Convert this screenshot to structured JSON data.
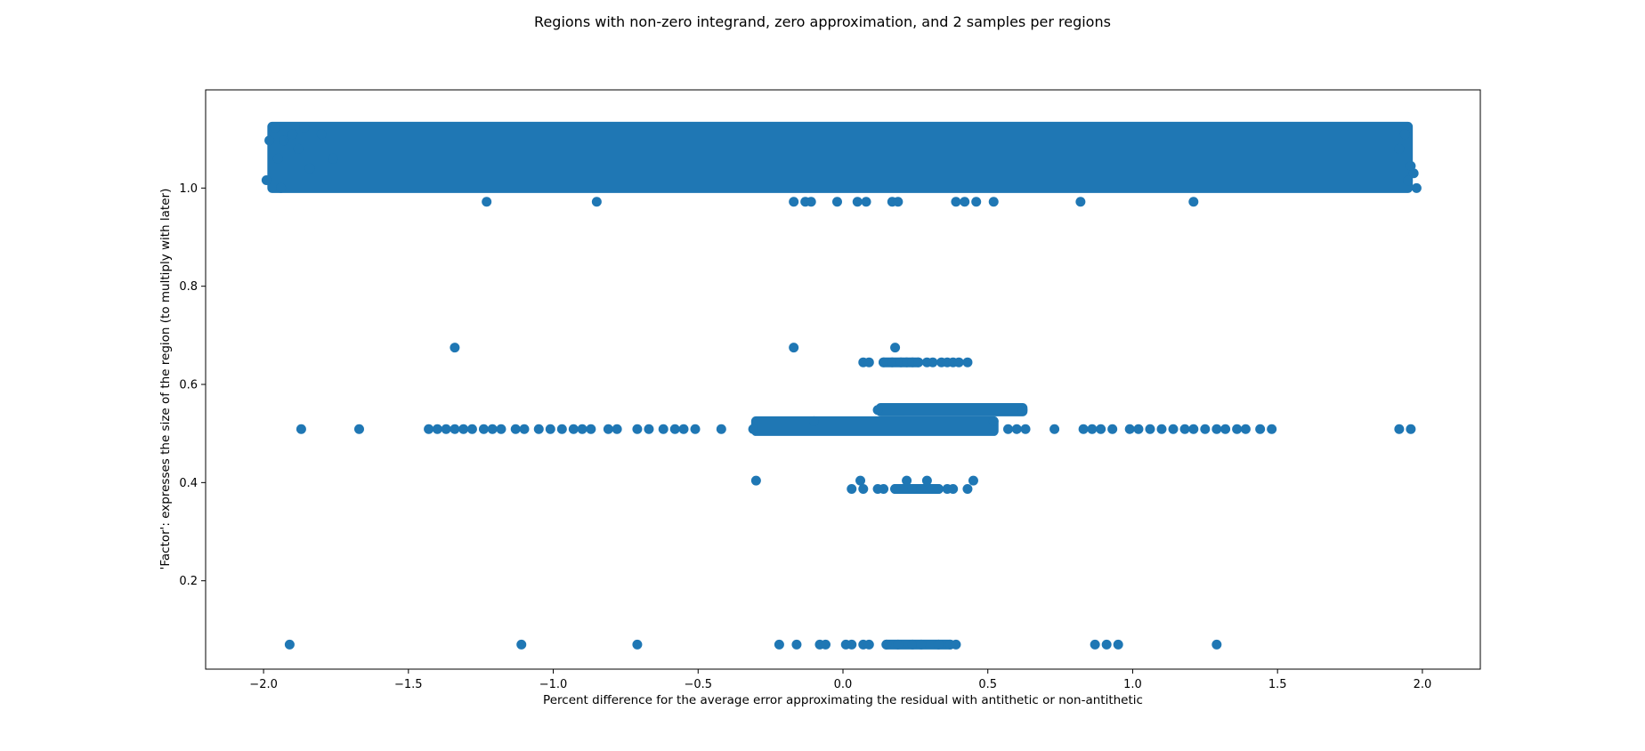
{
  "chart_data": {
    "type": "scatter",
    "title": "Regions with non-zero integrand, zero approximation, and 2 samples per regions",
    "xlabel": "Percent difference for the average error approximating the residual with antithetic or non-antithetic",
    "ylabel": "'Factor': expresses the size of the region (to multiply with later)",
    "xlim": [
      -2.2,
      2.2
    ],
    "ylim": [
      0.02,
      1.2
    ],
    "xticks": [
      "−2.0",
      "−1.5",
      "−1.0",
      "−0.5",
      "0.0",
      "0.5",
      "1.0",
      "1.5",
      "2.0"
    ],
    "xtick_values": [
      -2.0,
      -1.5,
      -1.0,
      -0.5,
      0.0,
      0.5,
      1.0,
      1.5,
      2.0
    ],
    "yticks": [
      "0.2",
      "0.4",
      "0.6",
      "0.8",
      "1.0"
    ],
    "ytick_values": [
      0.2,
      0.4,
      0.6,
      0.8,
      1.0
    ],
    "grid": false,
    "legend": "none",
    "marker_color": "#1f77b4",
    "series": [
      {
        "description": "dense band of points spanning the full x range at factor values around 1.0-1.125",
        "points": [
          [
            -1.98,
            1.097
          ],
          [
            -1.99,
            1.016
          ],
          [
            -1.96,
            1.123
          ],
          [
            -1.93,
            1.097
          ],
          [
            -1.95,
            1.06
          ],
          [
            -1.94,
            1.0
          ],
          [
            -1.9,
            1.11
          ],
          [
            -1.88,
            1.08
          ],
          [
            -1.86,
            1.123
          ],
          [
            -1.84,
            1.04
          ],
          [
            -1.8,
            1.11
          ],
          [
            -1.76,
            1.06
          ],
          [
            1.98,
            1.0
          ],
          [
            1.97,
            1.03
          ],
          [
            1.96,
            1.045
          ],
          [
            1.95,
            1.015
          ],
          [
            1.94,
            1.11
          ],
          [
            1.92,
            1.08
          ]
        ],
        "band": {
          "x": [
            -1.97,
            1.95
          ],
          "y": [
            1.0,
            1.125
          ]
        }
      },
      {
        "description": "points at factor about 0.97",
        "points": [
          [
            -1.23,
            0.972
          ],
          [
            -0.85,
            0.972
          ],
          [
            -0.17,
            0.972
          ],
          [
            -0.13,
            0.972
          ],
          [
            -0.11,
            0.972
          ],
          [
            -0.02,
            0.972
          ],
          [
            0.05,
            0.972
          ],
          [
            0.08,
            0.972
          ],
          [
            0.17,
            0.972
          ],
          [
            0.19,
            0.972
          ],
          [
            0.39,
            0.972
          ],
          [
            0.42,
            0.972
          ],
          [
            0.46,
            0.972
          ],
          [
            0.52,
            0.972
          ],
          [
            0.82,
            0.972
          ],
          [
            1.21,
            0.972
          ]
        ]
      },
      {
        "description": "points at factor about 0.675",
        "points": [
          [
            -1.34,
            0.675
          ],
          [
            -0.17,
            0.675
          ],
          [
            0.18,
            0.675
          ]
        ]
      },
      {
        "description": "points at factor about 0.645",
        "points": [
          [
            0.07,
            0.645
          ],
          [
            0.09,
            0.645
          ],
          [
            0.14,
            0.645
          ],
          [
            0.17,
            0.645
          ],
          [
            0.2,
            0.645
          ],
          [
            0.22,
            0.645
          ],
          [
            0.24,
            0.645
          ],
          [
            0.26,
            0.645
          ],
          [
            0.29,
            0.645
          ],
          [
            0.31,
            0.645
          ],
          [
            0.34,
            0.645
          ],
          [
            0.36,
            0.645
          ],
          [
            0.38,
            0.645
          ],
          [
            0.4,
            0.645
          ],
          [
            0.43,
            0.645
          ]
        ],
        "band": {
          "x": [
            0.14,
            0.26
          ],
          "y": [
            0.645,
            0.645
          ]
        }
      },
      {
        "description": "points at factor about 0.55",
        "points": [
          [
            0.12,
            0.548
          ],
          [
            0.62,
            0.548
          ]
        ],
        "band": {
          "x": [
            0.13,
            0.62
          ],
          "y": [
            0.545,
            0.552
          ]
        }
      },
      {
        "description": "points at factor about 0.51",
        "points": [
          [
            -1.87,
            0.509
          ],
          [
            -1.67,
            0.509
          ],
          [
            -1.43,
            0.509
          ],
          [
            -1.4,
            0.509
          ],
          [
            -1.37,
            0.509
          ],
          [
            -1.34,
            0.509
          ],
          [
            -1.31,
            0.509
          ],
          [
            -1.28,
            0.509
          ],
          [
            -1.24,
            0.509
          ],
          [
            -1.21,
            0.509
          ],
          [
            -1.18,
            0.509
          ],
          [
            -1.13,
            0.509
          ],
          [
            -1.1,
            0.509
          ],
          [
            -1.05,
            0.509
          ],
          [
            -1.01,
            0.509
          ],
          [
            -0.97,
            0.509
          ],
          [
            -0.93,
            0.509
          ],
          [
            -0.9,
            0.509
          ],
          [
            -0.87,
            0.509
          ],
          [
            -0.81,
            0.509
          ],
          [
            -0.78,
            0.509
          ],
          [
            -0.71,
            0.509
          ],
          [
            -0.67,
            0.509
          ],
          [
            -0.62,
            0.509
          ],
          [
            -0.58,
            0.509
          ],
          [
            -0.55,
            0.509
          ],
          [
            -0.51,
            0.509
          ],
          [
            -0.42,
            0.509
          ],
          [
            -0.31,
            0.509
          ],
          [
            -0.1,
            0.525
          ],
          [
            0.52,
            0.525
          ],
          [
            0.57,
            0.509
          ],
          [
            0.6,
            0.509
          ],
          [
            0.63,
            0.509
          ],
          [
            0.73,
            0.509
          ],
          [
            0.83,
            0.509
          ],
          [
            0.86,
            0.509
          ],
          [
            0.89,
            0.509
          ],
          [
            0.93,
            0.509
          ],
          [
            0.99,
            0.509
          ],
          [
            1.02,
            0.509
          ],
          [
            1.06,
            0.509
          ],
          [
            1.1,
            0.509
          ],
          [
            1.14,
            0.509
          ],
          [
            1.18,
            0.509
          ],
          [
            1.21,
            0.509
          ],
          [
            1.25,
            0.509
          ],
          [
            1.29,
            0.509
          ],
          [
            1.32,
            0.509
          ],
          [
            1.36,
            0.509
          ],
          [
            1.39,
            0.509
          ],
          [
            1.44,
            0.509
          ],
          [
            1.48,
            0.509
          ],
          [
            1.92,
            0.509
          ],
          [
            1.96,
            0.509
          ]
        ],
        "band": {
          "x": [
            -0.3,
            0.52
          ],
          "y": [
            0.505,
            0.525
          ]
        }
      },
      {
        "description": "points at factor about 0.39-0.405",
        "points": [
          [
            -0.3,
            0.404
          ],
          [
            0.03,
            0.387
          ],
          [
            0.06,
            0.404
          ],
          [
            0.07,
            0.387
          ],
          [
            0.12,
            0.387
          ],
          [
            0.14,
            0.387
          ],
          [
            0.18,
            0.387
          ],
          [
            0.22,
            0.404
          ],
          [
            0.24,
            0.387
          ],
          [
            0.27,
            0.387
          ],
          [
            0.29,
            0.404
          ],
          [
            0.31,
            0.387
          ],
          [
            0.33,
            0.387
          ],
          [
            0.36,
            0.387
          ],
          [
            0.38,
            0.387
          ],
          [
            0.43,
            0.387
          ],
          [
            0.45,
            0.404
          ]
        ],
        "band": {
          "x": [
            0.18,
            0.33
          ],
          "y": [
            0.387,
            0.387
          ]
        }
      },
      {
        "description": "points at factor about 0.07",
        "points": [
          [
            -1.91,
            0.07
          ],
          [
            -1.11,
            0.07
          ],
          [
            -0.71,
            0.07
          ],
          [
            -0.22,
            0.07
          ],
          [
            -0.16,
            0.07
          ],
          [
            -0.08,
            0.07
          ],
          [
            -0.06,
            0.07
          ],
          [
            0.01,
            0.07
          ],
          [
            0.03,
            0.07
          ],
          [
            0.07,
            0.07
          ],
          [
            0.09,
            0.07
          ],
          [
            0.15,
            0.07
          ],
          [
            0.19,
            0.07
          ],
          [
            0.24,
            0.07
          ],
          [
            0.27,
            0.07
          ],
          [
            0.33,
            0.07
          ],
          [
            0.37,
            0.07
          ],
          [
            0.39,
            0.07
          ],
          [
            0.87,
            0.07
          ],
          [
            0.91,
            0.07
          ],
          [
            0.95,
            0.07
          ],
          [
            1.29,
            0.07
          ]
        ],
        "band": {
          "x": [
            0.15,
            0.37
          ],
          "y": [
            0.07,
            0.07
          ]
        }
      }
    ]
  }
}
